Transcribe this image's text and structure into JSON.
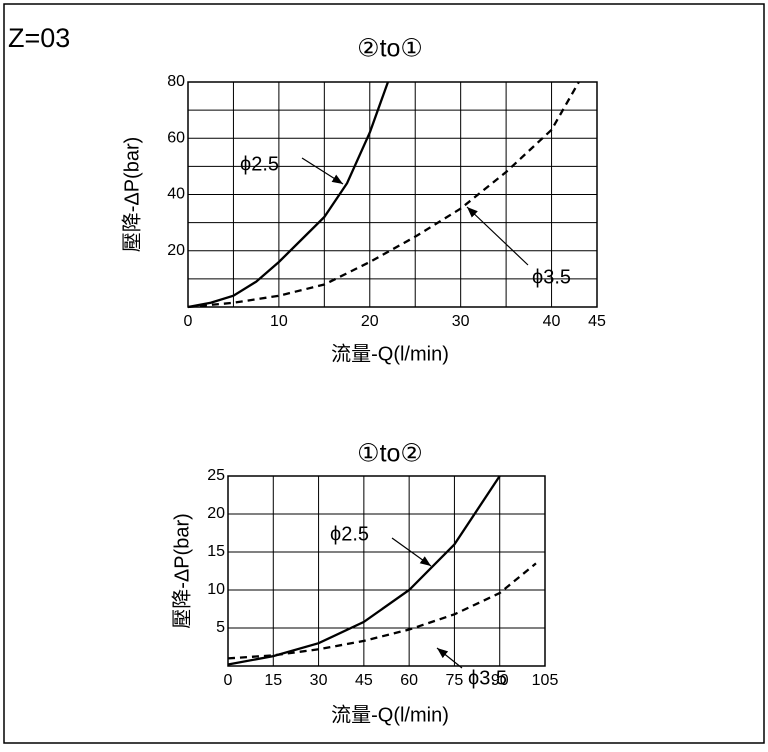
{
  "page_label": "Z=03",
  "chart_data": [
    {
      "type": "line",
      "title": "②to①",
      "x_label": "流量-Q(l/min)",
      "y_label": "壓降-ΔP(bar)",
      "xlim": [
        0,
        45
      ],
      "xticks": [
        0,
        10,
        20,
        30,
        40,
        45
      ],
      "xminor": [
        5,
        15,
        25,
        35
      ],
      "ylim": [
        0,
        80
      ],
      "yticks": [
        20,
        40,
        60,
        80
      ],
      "yminor": [
        10,
        30,
        50,
        70
      ],
      "grid": true,
      "series": [
        {
          "name": "ϕ2.5",
          "color": "#000000",
          "style": "solid",
          "x": [
            0,
            2.5,
            5,
            7.5,
            10,
            12.5,
            15,
            17.5,
            20,
            22
          ],
          "values": [
            0,
            1.5,
            4,
            9,
            16,
            24,
            32,
            44,
            62,
            80
          ]
        },
        {
          "name": "ϕ3.5",
          "color": "#000000",
          "style": "dashed",
          "x": [
            0,
            5,
            10,
            15,
            20,
            25,
            30,
            35,
            40,
            43
          ],
          "values": [
            0,
            1.5,
            4,
            8,
            16,
            25,
            35,
            48,
            63,
            80
          ]
        }
      ]
    },
    {
      "type": "line",
      "title": "①to②",
      "x_label": "流量-Q(l/min)",
      "y_label": "壓降-ΔP(bar)",
      "xlim": [
        0,
        105
      ],
      "xticks": [
        0,
        15,
        30,
        45,
        60,
        75,
        90,
        105
      ],
      "xminor": [],
      "ylim": [
        0,
        25
      ],
      "yticks": [
        5,
        10,
        15,
        20,
        25
      ],
      "yminor": [],
      "grid": true,
      "series": [
        {
          "name": "ϕ2.5",
          "color": "#000000",
          "style": "solid",
          "x": [
            0,
            15,
            30,
            45,
            60,
            75,
            90
          ],
          "values": [
            0.2,
            1.3,
            3,
            5.8,
            10,
            16,
            25
          ]
        },
        {
          "name": "ϕ3.5",
          "color": "#000000",
          "style": "dashed",
          "x": [
            0,
            15,
            30,
            45,
            60,
            75,
            90,
            102
          ],
          "values": [
            1,
            1.4,
            2.2,
            3.3,
            4.8,
            6.8,
            9.6,
            13.5
          ]
        }
      ]
    }
  ]
}
